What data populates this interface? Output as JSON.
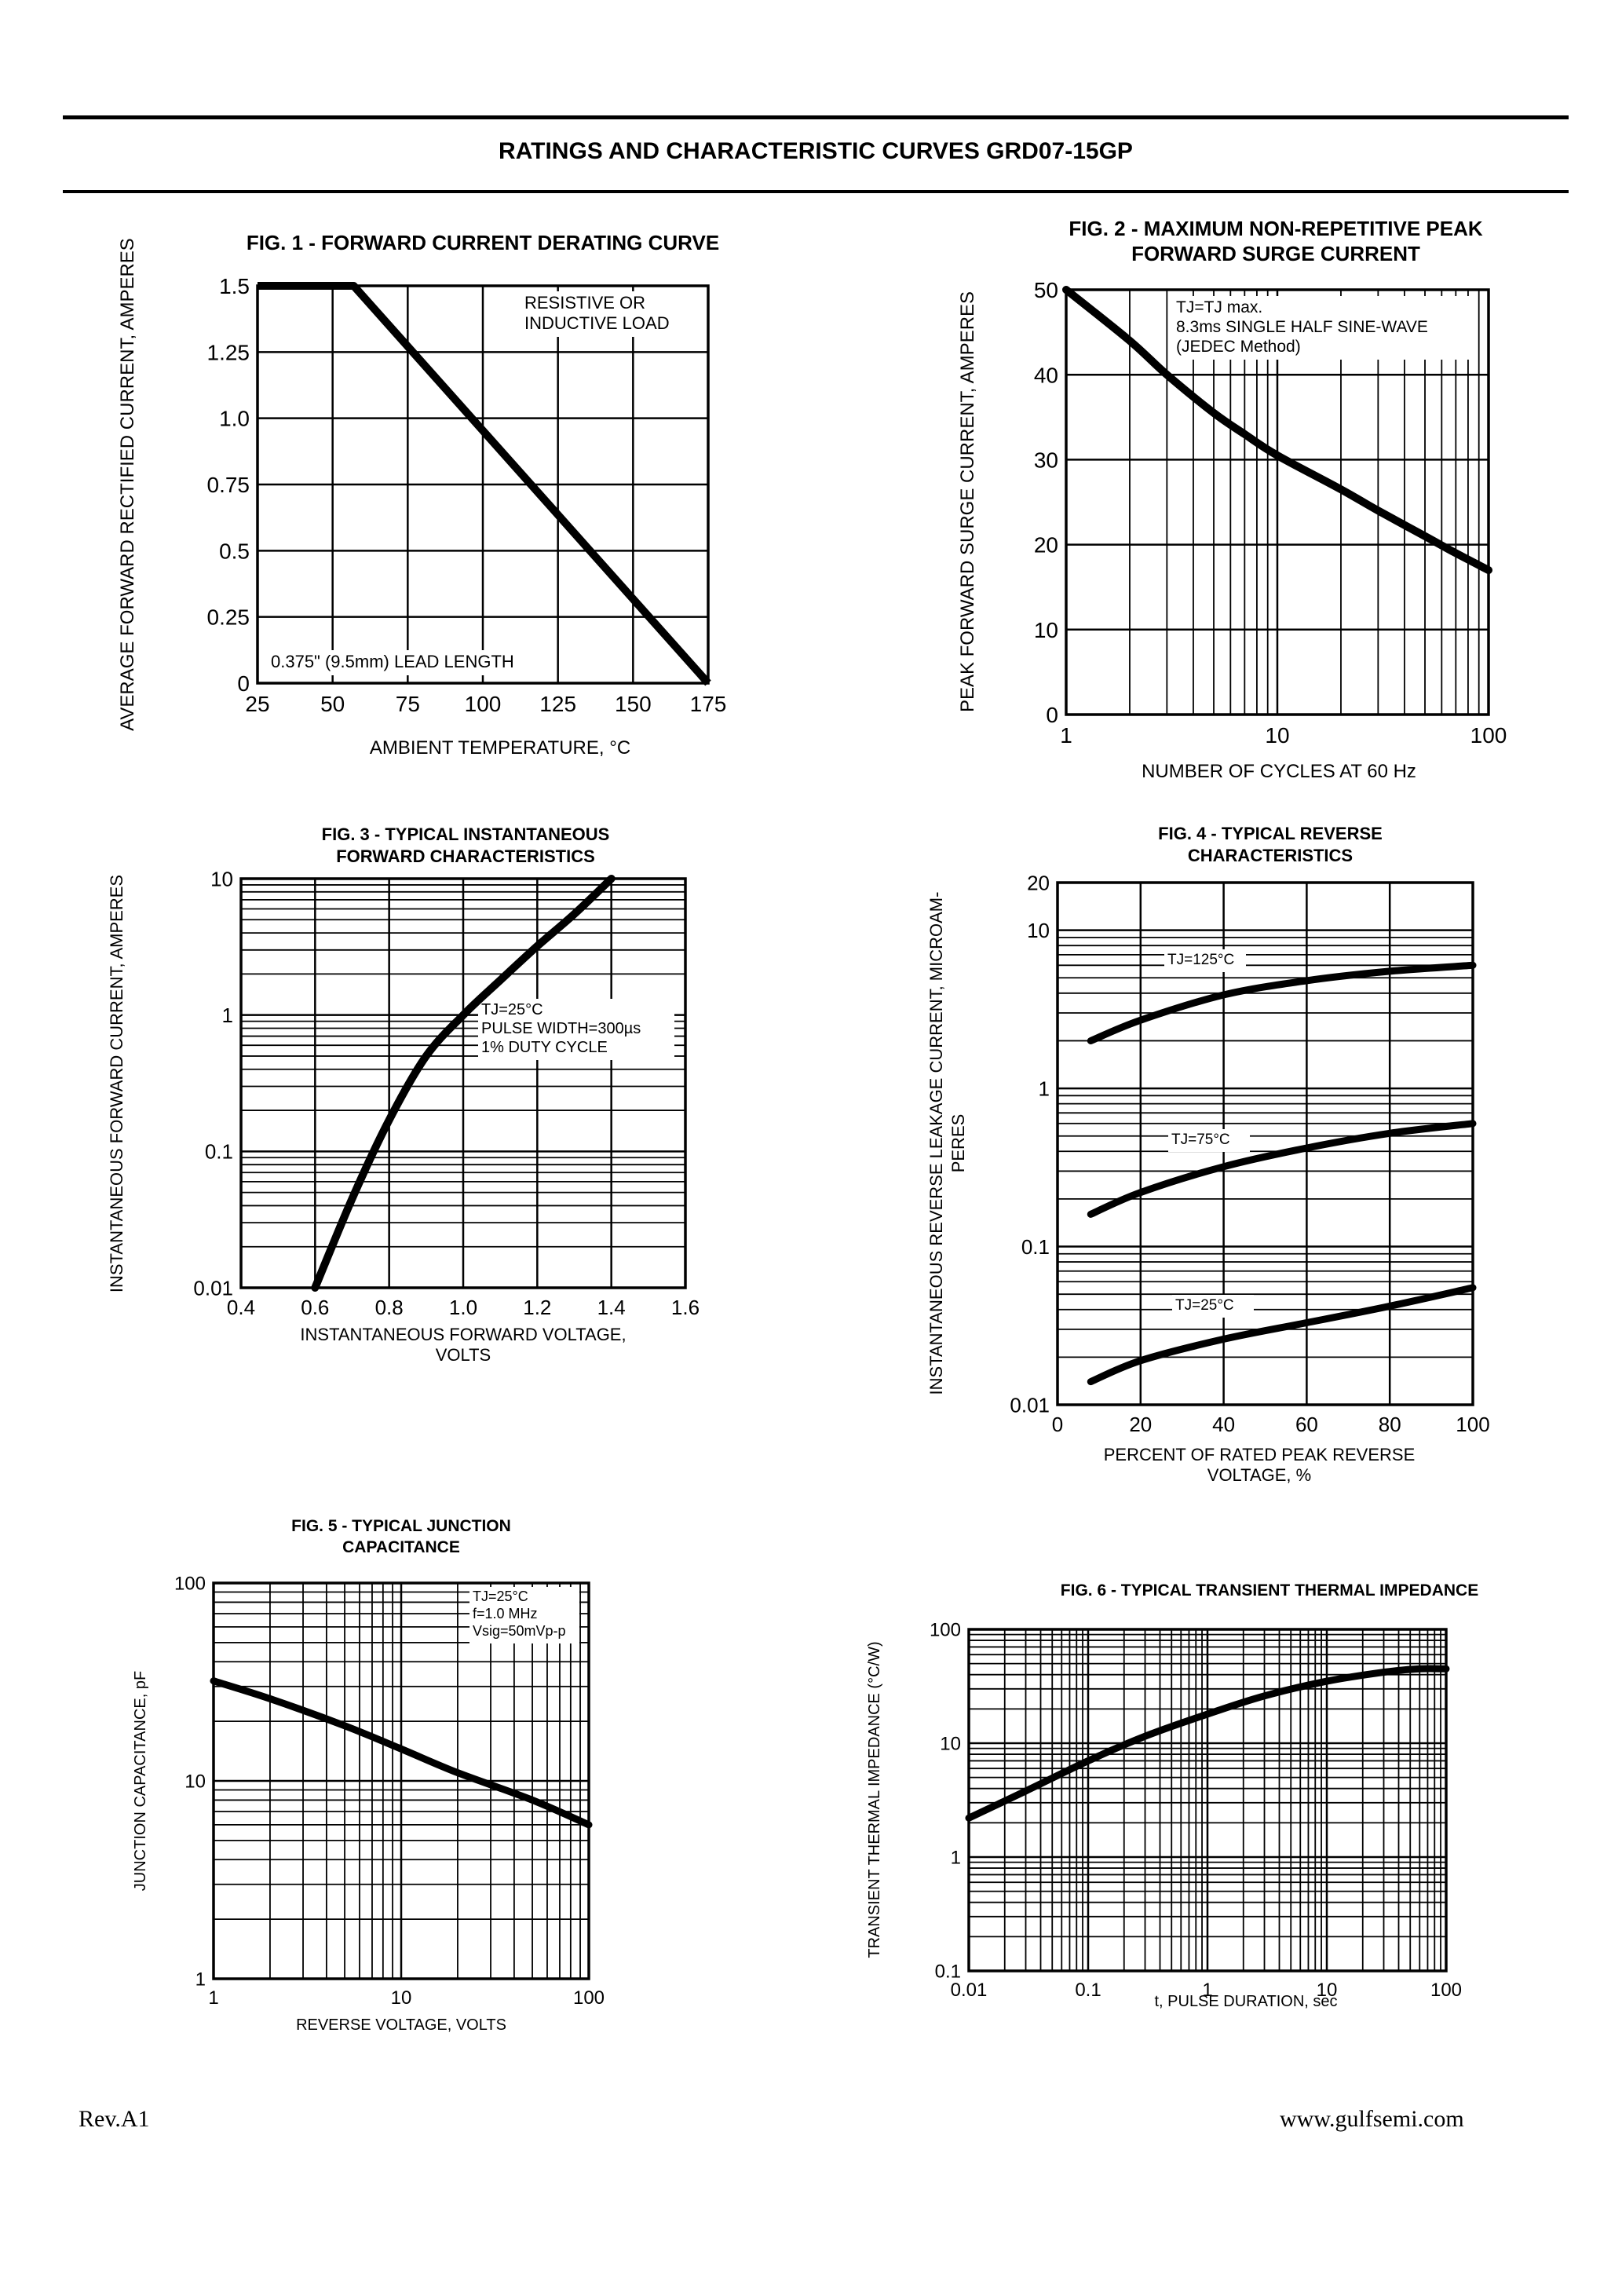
{
  "page": {
    "title": "RATINGS AND CHARACTERISTIC CURVES GRD07-15GP",
    "footer_left": "Rev.A1",
    "footer_right": "www.gulfsemi.com"
  },
  "chart_data": [
    {
      "id": "fig1",
      "type": "line",
      "title": "FIG. 1 - FORWARD CURRENT DERATING CURVE",
      "xlabel": "AMBIENT TEMPERATURE, °C",
      "ylabel": "AVERAGE FORWARD RECTIFIED CURRENT, AMPERES",
      "xscale": "linear",
      "yscale": "linear",
      "xlim": [
        25,
        175
      ],
      "ylim": [
        0,
        1.5
      ],
      "xticks": [
        25,
        50,
        75,
        100,
        125,
        150,
        175
      ],
      "xtick_labels": [
        "25",
        "50",
        "75",
        "100",
        "125",
        "150",
        "175"
      ],
      "yticks": [
        0,
        0.25,
        0.5,
        0.75,
        1.0,
        1.25,
        1.5
      ],
      "ytick_labels": [
        "0",
        "0.25",
        "0.5",
        "0.75",
        "1.0",
        "1.25",
        "1.5"
      ],
      "grid": true,
      "annotations": [
        "RESISTIVE OR",
        "INDUCTIVE LOAD",
        "0.375\" (9.5mm) LEAD LENGTH"
      ],
      "series": [
        {
          "x": [
            25,
            57,
            175
          ],
          "y": [
            1.5,
            1.5,
            0
          ]
        }
      ]
    },
    {
      "id": "fig2",
      "type": "line",
      "title": [
        "FIG. 2 - MAXIMUM NON-REPETITIVE PEAK",
        "FORWARD SURGE CURRENT"
      ],
      "xlabel": "NUMBER OF CYCLES AT 60 Hz",
      "ylabel": "PEAK FORWARD SURGE CURRENT, AMPERES",
      "xscale": "log",
      "yscale": "linear",
      "xlim": [
        1,
        100
      ],
      "ylim": [
        0,
        50
      ],
      "xticks": [
        1,
        10,
        100
      ],
      "xtick_labels": [
        "1",
        "10",
        "100"
      ],
      "yticks": [
        0,
        10,
        20,
        30,
        40,
        50
      ],
      "ytick_labels": [
        "0",
        "10",
        "20",
        "30",
        "40",
        "50"
      ],
      "grid": true,
      "annotations": [
        "TJ=TJ max.",
        "8.3ms SINGLE HALF SINE-WAVE",
        "(JEDEC Method)"
      ],
      "series": [
        {
          "x": [
            1,
            2,
            3,
            5,
            7,
            10,
            20,
            30,
            50,
            70,
            100
          ],
          "y": [
            50,
            44,
            40,
            35.5,
            33,
            30.5,
            26.5,
            24,
            21,
            19,
            17
          ]
        }
      ]
    },
    {
      "id": "fig3",
      "type": "line",
      "title": [
        "FIG. 3 - TYPICAL INSTANTANEOUS",
        "FORWARD CHARACTERISTICS"
      ],
      "xlabel": [
        "INSTANTANEOUS FORWARD VOLTAGE,",
        "VOLTS"
      ],
      "ylabel": "INSTANTANEOUS FORWARD CURRENT, AMPERES",
      "xscale": "linear",
      "yscale": "log",
      "xlim": [
        0.4,
        1.6
      ],
      "ylim": [
        0.01,
        10
      ],
      "xticks": [
        0.4,
        0.6,
        0.8,
        1.0,
        1.2,
        1.4,
        1.6
      ],
      "xtick_labels": [
        "0.4",
        "0.6",
        "0.8",
        "1.0",
        "1.2",
        "1.4",
        "1.6"
      ],
      "yticks": [
        0.01,
        0.1,
        1,
        10
      ],
      "ytick_labels": [
        "0.01",
        "0.1",
        "1",
        "10"
      ],
      "grid": true,
      "annotations": [
        "TJ=25°C",
        "PULSE WIDTH=300µs",
        "1% DUTY CYCLE"
      ],
      "series": [
        {
          "x": [
            0.6,
            0.7,
            0.8,
            0.9,
            1.0,
            1.1,
            1.2,
            1.3,
            1.4
          ],
          "y": [
            0.01,
            0.045,
            0.17,
            0.5,
            1.0,
            1.8,
            3.2,
            5.5,
            10
          ]
        }
      ]
    },
    {
      "id": "fig4",
      "type": "line",
      "title": [
        "FIG. 4 - TYPICAL REVERSE",
        "CHARACTERISTICS"
      ],
      "xlabel": [
        "PERCENT OF RATED PEAK REVERSE",
        "VOLTAGE, %"
      ],
      "ylabel": [
        "INSTANTANEOUS REVERSE LEAKAGE CURRENT, MICROAM-",
        "PERES"
      ],
      "xscale": "linear",
      "yscale": "log",
      "xlim": [
        0,
        100
      ],
      "ylim": [
        0.01,
        20
      ],
      "xticks": [
        0,
        20,
        40,
        60,
        80,
        100
      ],
      "xtick_labels": [
        "0",
        "20",
        "40",
        "60",
        "80",
        "100"
      ],
      "yticks": [
        0.01,
        0.1,
        1,
        10,
        20
      ],
      "ytick_labels": [
        "0.01",
        "0.1",
        "1",
        "10",
        "20"
      ],
      "grid": true,
      "series": [
        {
          "name": "TJ=125°C",
          "x": [
            8,
            20,
            40,
            60,
            80,
            100
          ],
          "y": [
            2.0,
            2.7,
            3.9,
            4.8,
            5.5,
            6.0
          ]
        },
        {
          "name": "TJ=75°C",
          "x": [
            8,
            20,
            40,
            60,
            80,
            100
          ],
          "y": [
            0.16,
            0.22,
            0.32,
            0.42,
            0.52,
            0.6
          ]
        },
        {
          "name": "TJ=25°C",
          "x": [
            8,
            20,
            40,
            60,
            80,
            100
          ],
          "y": [
            0.014,
            0.019,
            0.026,
            0.033,
            0.042,
            0.055
          ]
        }
      ]
    },
    {
      "id": "fig5",
      "type": "line",
      "title": [
        "FIG. 5 - TYPICAL JUNCTION",
        "CAPACITANCE"
      ],
      "xlabel": "REVERSE VOLTAGE, VOLTS",
      "ylabel": "JUNCTION CAPACITANCE, pF",
      "xscale": "log",
      "yscale": "log",
      "xlim": [
        1,
        100
      ],
      "ylim": [
        1,
        100
      ],
      "xticks": [
        1,
        10,
        100
      ],
      "xtick_labels": [
        "1",
        "10",
        "100"
      ],
      "yticks": [
        1,
        10,
        100
      ],
      "ytick_labels": [
        "1",
        "10",
        "100"
      ],
      "grid": true,
      "annotations": [
        "TJ=25°C",
        "f=1.0 MHz",
        "Vsig=50mVp-p"
      ],
      "series": [
        {
          "x": [
            1,
            2,
            5,
            10,
            20,
            50,
            100
          ],
          "y": [
            32,
            26,
            19,
            14.5,
            11,
            8,
            6
          ]
        }
      ]
    },
    {
      "id": "fig6",
      "type": "line",
      "title": "FIG. 6 - TYPICAL TRANSIENT THERMAL IMPEDANCE",
      "xlabel": "t, PULSE DURATION, sec",
      "ylabel": "TRANSIENT THERMAL IMPEDANCE (°C/W)",
      "xscale": "log",
      "yscale": "log",
      "xlim": [
        0.01,
        100
      ],
      "ylim": [
        0.1,
        100
      ],
      "xticks": [
        0.01,
        0.1,
        1,
        10,
        100
      ],
      "xtick_labels": [
        "0.01",
        "0.1",
        "1",
        "10",
        "100"
      ],
      "yticks": [
        0.1,
        1,
        10,
        100
      ],
      "ytick_labels": [
        "0.1",
        "1",
        "10",
        "100"
      ],
      "grid": true,
      "series": [
        {
          "x": [
            0.01,
            0.03,
            0.1,
            0.3,
            1,
            3,
            10,
            30,
            60,
            100
          ],
          "y": [
            2.2,
            3.8,
            7,
            11.5,
            18,
            26,
            35,
            42,
            45,
            45
          ]
        }
      ]
    }
  ]
}
